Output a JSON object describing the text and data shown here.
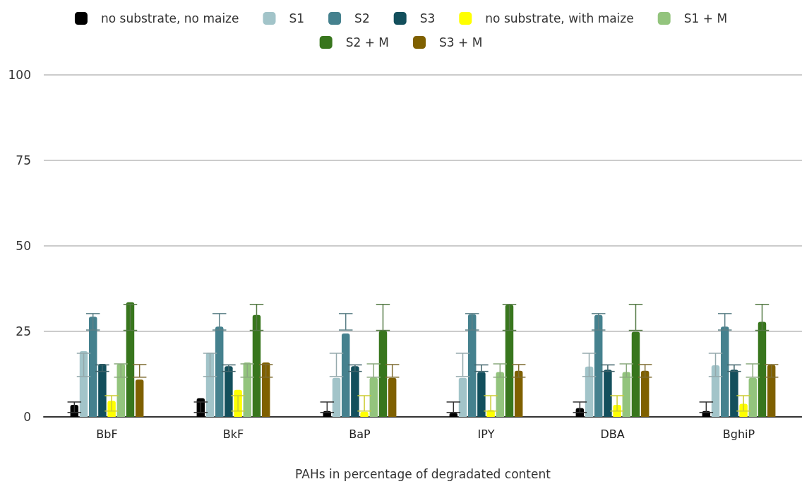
{
  "chart_data": {
    "type": "bar",
    "xlabel": "PAHs in percentage of degradated content",
    "categories": [
      "BbF",
      "BkF",
      "BaP",
      "IPY",
      "DBA",
      "BghiP"
    ],
    "ylim": [
      0,
      100
    ],
    "yticks": [
      0,
      25,
      50,
      75,
      100
    ],
    "grid": "y",
    "legend": "top",
    "series": [
      {
        "name": "no substrate, no maize",
        "color": "#000000",
        "values": [
          3.5,
          5.5,
          1.7,
          1.2,
          2.6,
          1.7
        ],
        "errors": [
          [
            1.3,
            4.35
          ],
          [
            1.3,
            4.35
          ],
          [
            1.3,
            4.35
          ],
          [
            1.3,
            4.35
          ],
          [
            1.3,
            4.35
          ],
          [
            1.3,
            4.35
          ]
        ]
      },
      {
        "name": "S1",
        "color": "#a2c4c9",
        "values": [
          19.2,
          18.8,
          11.4,
          11.4,
          14.7,
          15.1
        ],
        "errors": [
          [
            11.8,
            18.6
          ],
          [
            11.8,
            18.6
          ],
          [
            11.8,
            18.6
          ],
          [
            11.8,
            18.6
          ],
          [
            11.8,
            18.6
          ],
          [
            11.8,
            18.6
          ]
        ]
      },
      {
        "name": "S2",
        "color": "#45818e",
        "values": [
          29.3,
          26.4,
          24.4,
          30,
          29.8,
          26.4
        ],
        "errors": [
          [
            25.4,
            30.2
          ],
          [
            25.4,
            30.2
          ],
          [
            25.4,
            30.2
          ],
          [
            25.4,
            30.2
          ],
          [
            25.4,
            30.2
          ],
          [
            25.4,
            30.2
          ]
        ]
      },
      {
        "name": "S3",
        "color": "#134f5c",
        "values": [
          15.5,
          14.8,
          14.8,
          13.1,
          13.8,
          13.8
        ],
        "errors": [
          [
            13.3,
            15.2
          ],
          [
            13.3,
            15.2
          ],
          [
            13.3,
            15.2
          ],
          [
            13.3,
            15.2
          ],
          [
            13.3,
            15.2
          ],
          [
            13.3,
            15.2
          ]
        ]
      },
      {
        "name": "no substrate, with maize",
        "color": "#ffff00",
        "values": [
          4.7,
          7.9,
          1.5,
          2,
          3.5,
          3.8
        ],
        "errors": [
          [
            1.7,
            6.2
          ],
          [
            1.7,
            6.2
          ],
          [
            1.7,
            6.2
          ],
          [
            1.7,
            6.2
          ],
          [
            1.7,
            6.2
          ],
          [
            1.7,
            6.2
          ]
        ]
      },
      {
        "name": "S1 + M",
        "color": "#93c47d",
        "values": [
          15.5,
          15.9,
          11.5,
          13.1,
          13.1,
          11.4
        ],
        "errors": [
          [
            11.6,
            15.5
          ],
          [
            11.6,
            15.5
          ],
          [
            11.6,
            15.5
          ],
          [
            11.6,
            15.5
          ],
          [
            11.6,
            15.5
          ],
          [
            11.6,
            15.5
          ]
        ]
      },
      {
        "name": "S2 + M",
        "color": "#38761d",
        "values": [
          33.5,
          29.8,
          25.2,
          32.8,
          24.9,
          27.8
        ],
        "errors": [
          [
            25.3,
            32.9
          ],
          [
            25.3,
            32.9
          ],
          [
            25.3,
            32.9
          ],
          [
            25.3,
            32.9
          ],
          [
            25.3,
            32.9
          ],
          [
            25.3,
            32.9
          ]
        ]
      },
      {
        "name": "S3 + M",
        "color": "#7f6000",
        "values": [
          10.9,
          15.9,
          11.4,
          13.5,
          13.5,
          15.2
        ],
        "errors": [
          [
            11.6,
            15.3
          ],
          [
            11.6,
            15.3
          ],
          [
            11.6,
            15.3
          ],
          [
            11.6,
            15.3
          ],
          [
            11.6,
            15.3
          ],
          [
            11.6,
            15.3
          ]
        ]
      }
    ]
  }
}
